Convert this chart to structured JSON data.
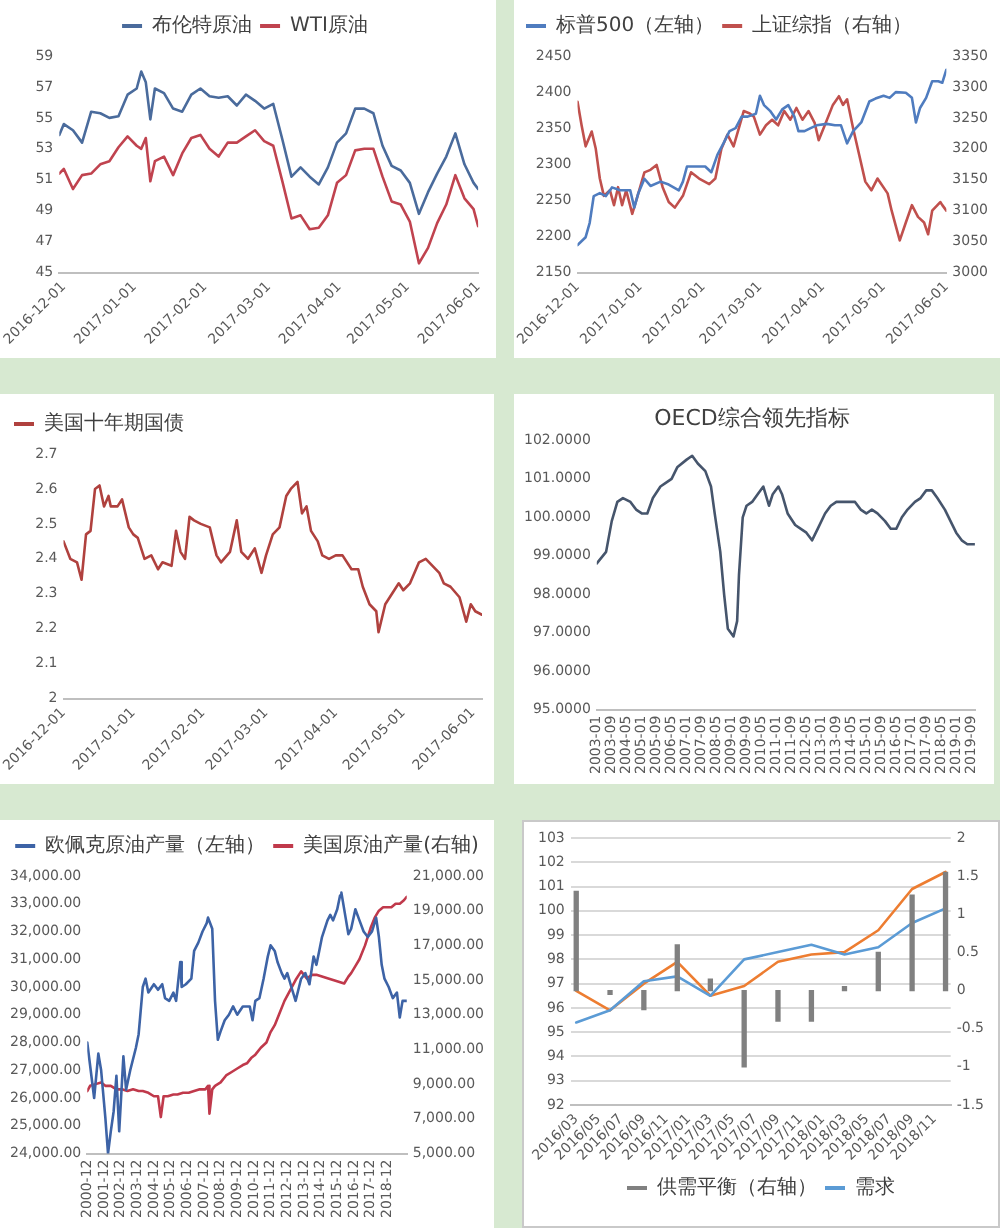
{
  "chart_data": [
    {
      "type": "line",
      "legend": "top",
      "x": [
        "2016-11-29",
        "2016-12-01",
        "2016-12-05",
        "2016-12-09",
        "2016-12-13",
        "2016-12-17",
        "2016-12-21",
        "2016-12-25",
        "2016-12-29",
        "2017-01-02",
        "2017-01-04",
        "2017-01-06",
        "2017-01-08",
        "2017-01-10",
        "2017-01-14",
        "2017-01-18",
        "2017-01-22",
        "2017-01-26",
        "2017-01-30",
        "2017-02-03",
        "2017-02-07",
        "2017-02-11",
        "2017-02-15",
        "2017-02-19",
        "2017-02-23",
        "2017-02-27",
        "2017-03-03",
        "2017-03-07",
        "2017-03-11",
        "2017-03-15",
        "2017-03-19",
        "2017-03-23",
        "2017-03-27",
        "2017-03-31",
        "2017-04-04",
        "2017-04-08",
        "2017-04-12",
        "2017-04-16",
        "2017-04-20",
        "2017-04-24",
        "2017-04-28",
        "2017-05-02",
        "2017-05-06",
        "2017-05-10",
        "2017-05-14",
        "2017-05-18",
        "2017-05-22",
        "2017-05-26",
        "2017-05-30",
        "2017-06-01"
      ],
      "xlim": [
        "2016-11-29",
        "2017-06-01"
      ],
      "xticks": [
        "2016-12-01",
        "2017-01-01",
        "2017-02-01",
        "2017-03-01",
        "2017-04-01",
        "2017-05-01",
        "2017-06-01"
      ],
      "ylim": [
        45,
        59
      ],
      "yticks": [
        45,
        47,
        49,
        51,
        53,
        55,
        57,
        59
      ],
      "series": [
        {
          "name": "布伦特原油",
          "color": "#4a6b9c",
          "values": [
            53.9,
            54.6,
            54.2,
            53.4,
            55.4,
            55.3,
            55.0,
            55.1,
            56.5,
            56.9,
            58.0,
            57.3,
            54.9,
            56.9,
            56.6,
            55.6,
            55.4,
            56.5,
            56.9,
            56.4,
            56.3,
            56.4,
            55.8,
            56.5,
            56.1,
            55.6,
            55.9,
            53.6,
            51.2,
            51.8,
            51.2,
            50.7,
            51.8,
            53.4,
            54.0,
            55.6,
            55.6,
            55.3,
            53.2,
            51.9,
            51.6,
            50.8,
            48.8,
            50.2,
            51.4,
            52.5,
            54.0,
            52.0,
            50.8,
            50.4
          ]
        },
        {
          "name": "WTI原油",
          "color": "#c0434f",
          "values": [
            51.4,
            51.7,
            50.4,
            51.3,
            51.4,
            52.0,
            52.2,
            53.1,
            53.8,
            53.2,
            53.0,
            53.7,
            50.9,
            52.2,
            52.5,
            51.3,
            52.7,
            53.7,
            53.9,
            53.0,
            52.5,
            53.4,
            53.4,
            53.8,
            54.2,
            53.5,
            53.2,
            50.9,
            48.5,
            48.7,
            47.8,
            47.9,
            48.7,
            50.8,
            51.3,
            52.9,
            53.0,
            53.0,
            51.2,
            49.6,
            49.4,
            48.3,
            45.6,
            46.6,
            48.2,
            49.4,
            51.3,
            49.8,
            49.1,
            48.0
          ]
        }
      ]
    },
    {
      "type": "line",
      "legend": "top left",
      "xlim": [
        "2016-12-01",
        "2017-06-01"
      ],
      "xticks": [
        "2016-12-01",
        "2017-01-01",
        "2017-02-01",
        "2017-03-01",
        "2017-04-01",
        "2017-05-01",
        "2017-06-01"
      ],
      "ylim": [
        2150,
        2450
      ],
      "yticks": [
        2150,
        2200,
        2250,
        2300,
        2350,
        2400,
        2450
      ],
      "y2lim": [
        3000,
        3350
      ],
      "y2ticks": [
        3000,
        3050,
        3100,
        3150,
        3200,
        3250,
        3300,
        3350
      ],
      "series": [
        {
          "name": "标普500（左轴）",
          "color": "#4f7cbf",
          "x": [
            "2016-12-01",
            "2016-12-05",
            "2016-12-07",
            "2016-12-09",
            "2016-12-12",
            "2016-12-15",
            "2016-12-18",
            "2016-12-22",
            "2016-12-27",
            "2016-12-29",
            "2016-12-31",
            "2017-01-03",
            "2017-01-06",
            "2017-01-11",
            "2017-01-15",
            "2017-01-20",
            "2017-01-22",
            "2017-01-24",
            "2017-01-29",
            "2017-02-02",
            "2017-02-05",
            "2017-02-08",
            "2017-02-11",
            "2017-02-14",
            "2017-02-17",
            "2017-02-20",
            "2017-02-23",
            "2017-02-27",
            "2017-03-01",
            "2017-03-03",
            "2017-03-06",
            "2017-03-09",
            "2017-03-12",
            "2017-03-15",
            "2017-03-18",
            "2017-03-20",
            "2017-03-23",
            "2017-03-26",
            "2017-03-29",
            "2017-04-03",
            "2017-04-07",
            "2017-04-10",
            "2017-04-13",
            "2017-04-16",
            "2017-04-20",
            "2017-04-24",
            "2017-04-27",
            "2017-05-01",
            "2017-05-04",
            "2017-05-07",
            "2017-05-12",
            "2017-05-15",
            "2017-05-17",
            "2017-05-19",
            "2017-05-22",
            "2017-05-25",
            "2017-05-28",
            "2017-05-30",
            "2017-06-01"
          ],
          "values": [
            2188,
            2199,
            2219,
            2256,
            2260,
            2256,
            2268,
            2264,
            2264,
            2240,
            2260,
            2280,
            2270,
            2276,
            2272,
            2264,
            2276,
            2297,
            2297,
            2297,
            2289,
            2313,
            2329,
            2346,
            2350,
            2366,
            2366,
            2370,
            2395,
            2382,
            2374,
            2362,
            2376,
            2382,
            2366,
            2346,
            2346,
            2350,
            2354,
            2356,
            2354,
            2354,
            2329,
            2346,
            2358,
            2387,
            2391,
            2395,
            2392,
            2400,
            2399,
            2392,
            2358,
            2378,
            2392,
            2415,
            2415,
            2413,
            2431
          ]
        },
        {
          "name": "上证综指（右轴）",
          "color": "#c0504d",
          "axis": "y2",
          "x": [
            "2016-12-01",
            "2016-12-03",
            "2016-12-05",
            "2016-12-08",
            "2016-12-10",
            "2016-12-12",
            "2016-12-14",
            "2016-12-17",
            "2016-12-19",
            "2016-12-21",
            "2016-12-23",
            "2016-12-25",
            "2016-12-28",
            "2016-12-31",
            "2017-01-03",
            "2017-01-06",
            "2017-01-09",
            "2017-01-12",
            "2017-01-15",
            "2017-01-18",
            "2017-01-22",
            "2017-01-26",
            "2017-01-30",
            "2017-02-04",
            "2017-02-07",
            "2017-02-10",
            "2017-02-13",
            "2017-02-16",
            "2017-02-19",
            "2017-02-21",
            "2017-02-24",
            "2017-02-26",
            "2017-03-01",
            "2017-03-04",
            "2017-03-07",
            "2017-03-10",
            "2017-03-13",
            "2017-03-16",
            "2017-03-19",
            "2017-03-22",
            "2017-03-25",
            "2017-03-28",
            "2017-03-30",
            "2017-04-02",
            "2017-04-06",
            "2017-04-09",
            "2017-04-11",
            "2017-04-13",
            "2017-04-16",
            "2017-04-19",
            "2017-04-22",
            "2017-04-25",
            "2017-04-28",
            "2017-05-03",
            "2017-05-05",
            "2017-05-07",
            "2017-05-09",
            "2017-05-12",
            "2017-05-15",
            "2017-05-18",
            "2017-05-21",
            "2017-05-23",
            "2017-05-25",
            "2017-05-29",
            "2017-05-30",
            "2017-06-01"
          ],
          "values": [
            3276,
            3238,
            3204,
            3228,
            3200,
            3152,
            3124,
            3133,
            3109,
            3138,
            3109,
            3133,
            3095,
            3128,
            3162,
            3166,
            3174,
            3138,
            3114,
            3105,
            3124,
            3162,
            3152,
            3143,
            3152,
            3200,
            3223,
            3204,
            3238,
            3261,
            3257,
            3252,
            3223,
            3238,
            3247,
            3238,
            3261,
            3247,
            3266,
            3247,
            3261,
            3242,
            3214,
            3238,
            3271,
            3285,
            3271,
            3280,
            3233,
            3190,
            3147,
            3133,
            3152,
            3128,
            3100,
            3076,
            3052,
            3081,
            3109,
            3090,
            3081,
            3062,
            3100,
            3114,
            3109,
            3100
          ]
        }
      ]
    },
    {
      "type": "line",
      "legend": "top left",
      "x": [
        "2016-12-01",
        "2016-12-04",
        "2016-12-07",
        "2016-12-09",
        "2016-12-11",
        "2016-12-13",
        "2016-12-15",
        "2016-12-17",
        "2016-12-19",
        "2016-12-21",
        "2016-12-22",
        "2016-12-25",
        "2016-12-27",
        "2016-12-30",
        "2017-01-01",
        "2017-01-03",
        "2017-01-06",
        "2017-01-09",
        "2017-01-12",
        "2017-01-14",
        "2017-01-18",
        "2017-01-20",
        "2017-01-22",
        "2017-01-24",
        "2017-01-26",
        "2017-01-28",
        "2017-01-31",
        "2017-02-04",
        "2017-02-07",
        "2017-02-09",
        "2017-02-13",
        "2017-02-16",
        "2017-02-18",
        "2017-02-21",
        "2017-02-24",
        "2017-02-27",
        "2017-03-01",
        "2017-03-04",
        "2017-03-07",
        "2017-03-10",
        "2017-03-12",
        "2017-03-15",
        "2017-03-17",
        "2017-03-19",
        "2017-03-21",
        "2017-03-24",
        "2017-03-26",
        "2017-03-29",
        "2017-04-01",
        "2017-04-04",
        "2017-04-08",
        "2017-04-11",
        "2017-04-13",
        "2017-04-16",
        "2017-04-19",
        "2017-04-20",
        "2017-04-23",
        "2017-04-26",
        "2017-04-29",
        "2017-05-01",
        "2017-05-04",
        "2017-05-08",
        "2017-05-11",
        "2017-05-14",
        "2017-05-17",
        "2017-05-19",
        "2017-05-22",
        "2017-05-26",
        "2017-05-29",
        "2017-05-31",
        "2017-06-02",
        "2017-06-05"
      ],
      "xlim": [
        "2016-12-01",
        "2017-06-05"
      ],
      "xticks": [
        "2016-12-01",
        "2017-01-01",
        "2017-02-01",
        "2017-03-01",
        "2017-04-01",
        "2017-05-01",
        "2017-06-01"
      ],
      "ylim": [
        2,
        2.7
      ],
      "yticks": [
        2,
        2.1,
        2.2,
        2.3,
        2.4,
        2.5,
        2.6,
        2.7
      ],
      "series": [
        {
          "name": "美国十年期国债",
          "color": "#b0413e",
          "values": [
            2.45,
            2.4,
            2.39,
            2.34,
            2.47,
            2.48,
            2.6,
            2.61,
            2.55,
            2.58,
            2.55,
            2.55,
            2.57,
            2.49,
            2.47,
            2.46,
            2.4,
            2.41,
            2.37,
            2.39,
            2.38,
            2.48,
            2.42,
            2.4,
            2.52,
            2.51,
            2.5,
            2.49,
            2.41,
            2.39,
            2.42,
            2.51,
            2.42,
            2.4,
            2.43,
            2.36,
            2.41,
            2.47,
            2.49,
            2.58,
            2.6,
            2.62,
            2.53,
            2.55,
            2.48,
            2.45,
            2.41,
            2.4,
            2.41,
            2.41,
            2.37,
            2.37,
            2.32,
            2.27,
            2.25,
            2.19,
            2.27,
            2.3,
            2.33,
            2.31,
            2.33,
            2.39,
            2.4,
            2.38,
            2.36,
            2.33,
            2.32,
            2.29,
            2.22,
            2.27,
            2.25,
            2.24
          ]
        }
      ]
    },
    {
      "type": "line",
      "title": "OECD综合领先指标",
      "x": [
        "2003-01",
        "2003-06",
        "2003-09",
        "2003-12",
        "2004-03",
        "2004-07",
        "2004-10",
        "2005-01",
        "2005-04",
        "2005-07",
        "2005-11",
        "2006-02",
        "2006-05",
        "2006-08",
        "2007-01",
        "2007-04",
        "2007-07",
        "2007-11",
        "2008-02",
        "2008-04",
        "2008-07",
        "2008-09",
        "2008-11",
        "2009-02",
        "2009-04",
        "2009-05",
        "2009-07",
        "2009-09",
        "2009-12",
        "2010-03",
        "2010-06",
        "2010-09",
        "2010-11",
        "2011-02",
        "2011-04",
        "2011-07",
        "2011-11",
        "2012-02",
        "2012-05",
        "2012-08",
        "2012-11",
        "2013-03",
        "2013-06",
        "2013-09",
        "2013-12",
        "2014-03",
        "2014-07",
        "2014-10",
        "2015-01",
        "2015-04",
        "2015-07",
        "2015-11",
        "2016-02",
        "2016-05",
        "2016-08",
        "2016-11",
        "2017-03",
        "2017-06",
        "2017-09",
        "2017-12",
        "2018-03",
        "2018-07",
        "2018-10",
        "2019-01",
        "2019-04",
        "2019-07",
        "2019-11"
      ],
      "xlim": [
        "2003-01",
        "2019-11"
      ],
      "xticks": [
        "2003-01",
        "2003-09",
        "2004-05",
        "2005-01",
        "2005-09",
        "2006-05",
        "2007-01",
        "2007-09",
        "2008-05",
        "2009-01",
        "2009-09",
        "2010-05",
        "2011-01",
        "2011-09",
        "2012-05",
        "2013-01",
        "2013-09",
        "2014-05",
        "2015-01",
        "2015-09",
        "2016-05",
        "2017-01",
        "2017-09",
        "2018-05",
        "2019-01",
        "2019-09"
      ],
      "ylim": [
        95,
        102
      ],
      "yticks": [
        {
          "value": 95,
          "label": "95.0000"
        },
        {
          "value": 96,
          "label": "96.0000"
        },
        {
          "value": 97,
          "label": "97.0000"
        },
        {
          "value": 98,
          "label": "98.0000"
        },
        {
          "value": 99,
          "label": "99.0000"
        },
        {
          "value": 100,
          "label": "100.0000"
        },
        {
          "value": 101,
          "label": "101.0000"
        },
        {
          "value": 102,
          "label": "102.0000"
        }
      ],
      "series": [
        {
          "color": "#46556c",
          "values": [
            98.8,
            99.1,
            99.9,
            100.4,
            100.5,
            100.4,
            100.2,
            100.1,
            100.1,
            100.5,
            100.8,
            100.9,
            101.0,
            101.3,
            101.5,
            101.6,
            101.4,
            101.2,
            100.8,
            100.1,
            99.1,
            98.0,
            97.1,
            96.9,
            97.3,
            98.5,
            100.0,
            100.3,
            100.4,
            100.6,
            100.8,
            100.3,
            100.6,
            100.8,
            100.6,
            100.1,
            99.8,
            99.7,
            99.6,
            99.4,
            99.7,
            100.1,
            100.3,
            100.4,
            100.4,
            100.4,
            100.4,
            100.2,
            100.1,
            100.2,
            100.1,
            99.9,
            99.7,
            99.7,
            100.0,
            100.2,
            100.4,
            100.5,
            100.7,
            100.7,
            100.5,
            100.2,
            99.9,
            99.6,
            99.4,
            99.3,
            99.3
          ]
        }
      ]
    },
    {
      "type": "line",
      "legend": "top",
      "xlim": [
        "2000-12",
        "2020-02"
      ],
      "xticks": [
        "2000-12",
        "2001-12",
        "2002-12",
        "2003-12",
        "2004-12",
        "2005-12",
        "2006-12",
        "2007-12",
        "2008-12",
        "2009-12",
        "2010-12",
        "2011-12",
        "2012-12",
        "2013-12",
        "2014-12",
        "2015-12",
        "2016-12",
        "2017-12",
        "2018-12"
      ],
      "ylim": [
        24000,
        34000
      ],
      "yticks": [
        {
          "value": 24000,
          "label": "24,000.00"
        },
        {
          "value": 25000,
          "label": "25,000.00"
        },
        {
          "value": 26000,
          "label": "26,000.00"
        },
        {
          "value": 27000,
          "label": "27,000.00"
        },
        {
          "value": 28000,
          "label": "28,000.00"
        },
        {
          "value": 29000,
          "label": "29,000.00"
        },
        {
          "value": 30000,
          "label": "30,000.00"
        },
        {
          "value": 31000,
          "label": "31,000.00"
        },
        {
          "value": 32000,
          "label": "32,000.00"
        },
        {
          "value": 33000,
          "label": "33,000.00"
        },
        {
          "value": 34000,
          "label": "34,000.00"
        }
      ],
      "y2lim": [
        5000,
        21000
      ],
      "y2ticks": [
        {
          "value": 5000,
          "label": "5,000.00"
        },
        {
          "value": 7000,
          "label": "7,000.00"
        },
        {
          "value": 9000,
          "label": "9,000.00"
        },
        {
          "value": 11000,
          "label": "11,000.00"
        },
        {
          "value": 13000,
          "label": "13,000.00"
        },
        {
          "value": 15000,
          "label": "15,000.00"
        },
        {
          "value": 17000,
          "label": "17,000.00"
        },
        {
          "value": 19000,
          "label": "19,000.00"
        },
        {
          "value": 21000,
          "label": "21,000.00"
        }
      ],
      "series": [
        {
          "name": "欧佩克原油产量（左轴）",
          "color": "#3d63a6",
          "x": [
            "2000-12",
            "2001-05",
            "2001-08",
            "2001-10",
            "2002-01",
            "2002-03",
            "2002-05",
            "2002-07",
            "2002-09",
            "2002-11",
            "2003-02",
            "2003-04",
            "2003-07",
            "2003-11",
            "2004-01",
            "2004-04",
            "2004-06",
            "2004-08",
            "2004-12",
            "2005-03",
            "2005-06",
            "2005-08",
            "2005-11",
            "2006-02",
            "2006-04",
            "2006-07",
            "2006-08",
            "2006-11",
            "2007-03",
            "2007-05",
            "2007-08",
            "2007-11",
            "2008-02",
            "2008-03",
            "2008-06",
            "2008-08",
            "2008-10",
            "2008-12",
            "2009-03",
            "2009-06",
            "2009-09",
            "2009-12",
            "2010-04",
            "2010-09",
            "2010-11",
            "2011-01",
            "2011-04",
            "2011-07",
            "2011-10",
            "2011-12",
            "2012-03",
            "2012-05",
            "2012-08",
            "2012-10",
            "2012-12",
            "2013-03",
            "2013-06",
            "2013-08",
            "2013-10",
            "2014-01",
            "2014-04",
            "2014-07",
            "2014-09",
            "2014-11",
            "2015-01",
            "2015-05",
            "2015-07",
            "2015-09",
            "2015-12",
            "2016-02",
            "2016-03",
            "2016-06",
            "2016-08",
            "2016-10",
            "2017-01",
            "2017-04",
            "2017-07",
            "2017-10",
            "2018-01",
            "2018-04",
            "2018-06",
            "2018-08",
            "2018-10",
            "2019-01",
            "2019-04",
            "2019-07",
            "2019-09",
            "2019-11",
            "2020-02"
          ],
          "values": [
            28000,
            26000,
            27600,
            27000,
            25300,
            24000,
            24800,
            25500,
            26800,
            24800,
            27500,
            26300,
            27000,
            27800,
            28300,
            30000,
            30300,
            29800,
            30100,
            29900,
            30100,
            29600,
            29500,
            29800,
            29500,
            30900,
            30000,
            30100,
            30300,
            31300,
            31600,
            32000,
            32300,
            32500,
            32100,
            29500,
            28100,
            28400,
            28800,
            29000,
            29300,
            29000,
            29300,
            29300,
            28800,
            29500,
            29600,
            30300,
            31100,
            31500,
            31300,
            30900,
            30500,
            30300,
            30500,
            30000,
            29500,
            29900,
            30300,
            30500,
            30100,
            31100,
            30800,
            31300,
            31800,
            32400,
            32600,
            32400,
            32800,
            33300,
            33400,
            32500,
            31900,
            32100,
            32800,
            32400,
            32000,
            31800,
            32000,
            32500,
            31800,
            30800,
            30300,
            30000,
            29600,
            29800,
            28900,
            29500,
            29500
          ]
        },
        {
          "name": "美国原油产量(右轴)",
          "color": "#c0394b",
          "axis": "y2",
          "x": [
            "2000-12",
            "2001-02",
            "2001-06",
            "2001-10",
            "2002-01",
            "2002-05",
            "2002-09",
            "2003-01",
            "2003-05",
            "2003-09",
            "2004-01",
            "2004-04",
            "2004-08",
            "2004-12",
            "2005-03",
            "2005-05",
            "2005-07",
            "2005-10",
            "2006-02",
            "2006-05",
            "2006-09",
            "2007-01",
            "2007-05",
            "2007-09",
            "2008-01",
            "2008-03",
            "2008-04",
            "2008-06",
            "2008-08",
            "2008-12",
            "2009-04",
            "2009-08",
            "2009-12",
            "2010-04",
            "2010-07",
            "2010-10",
            "2011-01",
            "2011-05",
            "2011-09",
            "2011-12",
            "2012-03",
            "2012-06",
            "2012-10",
            "2013-02",
            "2013-06",
            "2013-10",
            "2014-02",
            "2014-06",
            "2014-09",
            "2015-01",
            "2015-05",
            "2015-09",
            "2016-01",
            "2016-05",
            "2016-08",
            "2016-10",
            "2017-01",
            "2017-04",
            "2017-08",
            "2017-12",
            "2018-03",
            "2018-06",
            "2018-09",
            "2018-11",
            "2019-03",
            "2019-06",
            "2019-09",
            "2019-12",
            "2020-02"
          ],
          "values": [
            8600,
            8900,
            9000,
            9100,
            8900,
            8900,
            8700,
            8700,
            8600,
            8700,
            8600,
            8600,
            8500,
            8300,
            8300,
            7100,
            8300,
            8300,
            8400,
            8400,
            8500,
            8500,
            8600,
            8700,
            8700,
            8900,
            7300,
            8700,
            8900,
            9100,
            9500,
            9700,
            9900,
            10100,
            10200,
            10500,
            10700,
            11100,
            11400,
            12000,
            12400,
            13000,
            13800,
            14400,
            15000,
            15500,
            15100,
            15300,
            15300,
            15200,
            15100,
            15000,
            14900,
            14800,
            15200,
            15400,
            15800,
            16200,
            17000,
            18000,
            18600,
            19000,
            19200,
            19200,
            19200,
            19400,
            19400,
            19600,
            19800
          ]
        }
      ]
    },
    {
      "type": "line",
      "legend": "bottom",
      "grid": "y",
      "x": [
        "2016-03",
        "2016-06",
        "2016-09",
        "2016-12",
        "2017-03",
        "2017-06",
        "2017-09",
        "2017-12",
        "2018-03",
        "2018-06",
        "2018-09",
        "2018-12"
      ],
      "xlim": [
        "2016-02-15",
        "2018-12-15"
      ],
      "xticks": [
        {
          "value": "2016-03",
          "label": "2016/03"
        },
        {
          "value": "2016-05",
          "label": "2016/05"
        },
        {
          "value": "2016-07",
          "label": "2016/07"
        },
        {
          "value": "2016-09",
          "label": "2016/09"
        },
        {
          "value": "2016-11",
          "label": "2016/11"
        },
        {
          "value": "2017-01",
          "label": "2017/01"
        },
        {
          "value": "2017-03",
          "label": "2017/03"
        },
        {
          "value": "2017-05",
          "label": "2017/05"
        },
        {
          "value": "2017-07",
          "label": "2017/07"
        },
        {
          "value": "2017-09",
          "label": "2017/09"
        },
        {
          "value": "2017-11",
          "label": "2017/11"
        },
        {
          "value": "2018-01",
          "label": "2018/01"
        },
        {
          "value": "2018-03",
          "label": "2018/03"
        },
        {
          "value": "2018-05",
          "label": "2018/05"
        },
        {
          "value": "2018-07",
          "label": "2018/07"
        },
        {
          "value": "2018-09",
          "label": "2018/09"
        },
        {
          "value": "2018-11",
          "label": "2018/11"
        }
      ],
      "ylim": [
        92,
        103
      ],
      "yticks": [
        92,
        93,
        94,
        95,
        96,
        97,
        98,
        99,
        100,
        101,
        102,
        103
      ],
      "y2lim": [
        -1.5,
        2
      ],
      "y2ticks": [
        -1.5,
        -1,
        -0.5,
        0,
        0.5,
        1,
        1.5,
        2
      ],
      "series": [
        {
          "name": "供需平衡（右轴）",
          "type": "bar",
          "axis": "y2",
          "color": "#808080",
          "values": [
            1.3,
            -0.05,
            -0.25,
            0.6,
            0.15,
            -1.0,
            -0.4,
            -0.4,
            0.05,
            0.5,
            1.25,
            1.55
          ]
        },
        {
          "name": "需求",
          "color": "#5b9bd5",
          "values": [
            95.4,
            95.9,
            97.1,
            97.3,
            96.5,
            98.0,
            98.3,
            98.6,
            98.2,
            98.5,
            99.5,
            100.1
          ]
        },
        {
          "color": "#ed7d31",
          "values": [
            96.7,
            95.9,
            97.0,
            97.9,
            96.5,
            96.9,
            97.9,
            98.2,
            98.3,
            99.2,
            100.9,
            101.6
          ]
        }
      ]
    }
  ]
}
